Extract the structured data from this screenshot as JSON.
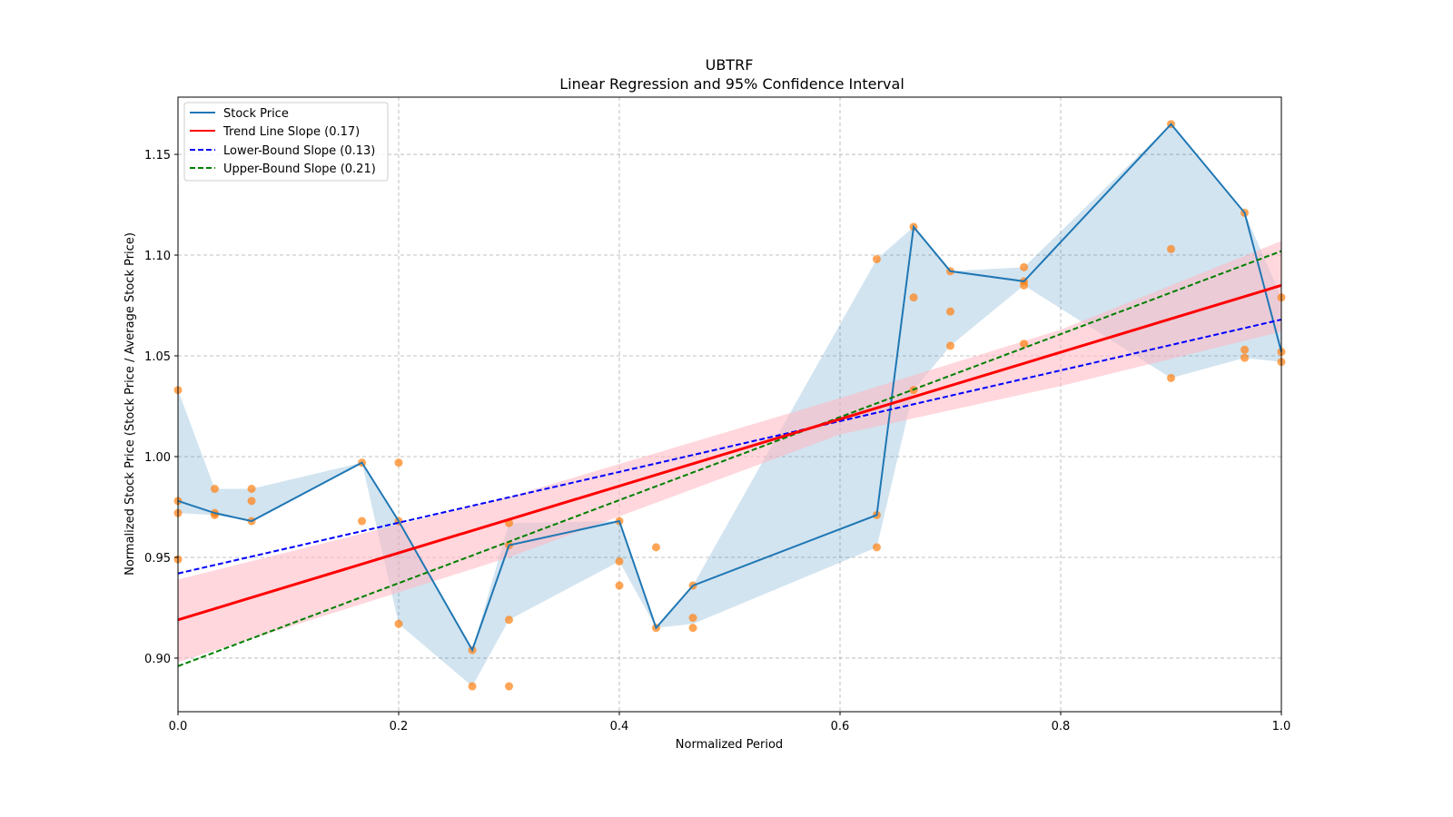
{
  "chart_data": {
    "type": "line",
    "title": "UBTRF",
    "subtitle": "Linear Regression and 95% Confidence Interval",
    "xlabel": "Normalized Period",
    "ylabel": "Normalized Stock Price (Stock Price / Average Stock Price)",
    "xlim": [
      0,
      1
    ],
    "ylim": [
      0.8734,
      1.1784
    ],
    "xticks": [
      "0.0",
      "0.2",
      "0.4",
      "0.6",
      "0.8",
      "1.0"
    ],
    "yticks": [
      "0.90",
      "0.95",
      "1.00",
      "1.05",
      "1.10",
      "1.15"
    ],
    "grid": true,
    "legend_position": "top-left",
    "colors": {
      "stock": "#1f77b4",
      "band": "#1f77b4",
      "scatter": "#ff7f0e",
      "trend": "#ff0000",
      "trend_ci": "#ffb6c1",
      "lower": "#0000ff",
      "upper": "#008000"
    },
    "legend": [
      "Stock Price",
      "Trend Line Slope (0.17)",
      "Lower-Bound Slope (0.13)",
      "Upper-Bound Slope (0.21)"
    ],
    "stock_price": {
      "x": [
        0,
        0.0333,
        0.0667,
        0.1667,
        0.2,
        0.2667,
        0.3,
        0.4,
        0.4333,
        0.4667,
        0.6333,
        0.6667,
        0.7,
        0.7667,
        0.9,
        0.9667,
        1.0
      ],
      "y": [
        0.978,
        0.972,
        0.968,
        0.997,
        0.968,
        0.904,
        0.956,
        0.968,
        0.915,
        0.936,
        0.971,
        1.114,
        1.092,
        1.087,
        1.165,
        1.121,
        1.052
      ],
      "band_lower": [
        0.972,
        0.971,
        0.968,
        0.997,
        0.917,
        0.886,
        0.919,
        0.948,
        0.915,
        0.917,
        0.955,
        1.033,
        1.055,
        1.085,
        1.039,
        1.049,
        1.047
      ],
      "band_upper": [
        1.033,
        0.984,
        0.984,
        0.997,
        0.968,
        0.904,
        0.967,
        0.968,
        0.915,
        0.936,
        1.098,
        1.114,
        1.092,
        1.094,
        1.165,
        1.121,
        1.079
      ]
    },
    "scatter": [
      [
        0,
        1.033
      ],
      [
        0,
        0.978
      ],
      [
        0,
        0.972
      ],
      [
        0,
        0.949
      ],
      [
        0.0333,
        0.984
      ],
      [
        0.0333,
        0.972
      ],
      [
        0.0333,
        0.971
      ],
      [
        0.0667,
        0.984
      ],
      [
        0.0667,
        0.978
      ],
      [
        0.0667,
        0.968
      ],
      [
        0.1667,
        0.997
      ],
      [
        0.1667,
        0.968
      ],
      [
        0.2,
        0.997
      ],
      [
        0.2,
        0.968
      ],
      [
        0.2,
        0.917
      ],
      [
        0.2667,
        0.904
      ],
      [
        0.2667,
        0.886
      ],
      [
        0.3,
        0.967
      ],
      [
        0.3,
        0.956
      ],
      [
        0.3,
        0.919
      ],
      [
        0.3,
        0.886
      ],
      [
        0.4,
        0.968
      ],
      [
        0.4,
        0.948
      ],
      [
        0.4,
        0.936
      ],
      [
        0.4333,
        0.955
      ],
      [
        0.4333,
        0.915
      ],
      [
        0.4667,
        0.936
      ],
      [
        0.4667,
        0.92
      ],
      [
        0.4667,
        0.915
      ],
      [
        0.6333,
        1.098
      ],
      [
        0.6333,
        0.971
      ],
      [
        0.6333,
        0.955
      ],
      [
        0.6667,
        1.114
      ],
      [
        0.6667,
        1.079
      ],
      [
        0.6667,
        1.033
      ],
      [
        0.7,
        1.092
      ],
      [
        0.7,
        1.072
      ],
      [
        0.7,
        1.055
      ],
      [
        0.7667,
        1.094
      ],
      [
        0.7667,
        1.087
      ],
      [
        0.7667,
        1.085
      ],
      [
        0.7667,
        1.056
      ],
      [
        0.9,
        1.165
      ],
      [
        0.9,
        1.103
      ],
      [
        0.9,
        1.039
      ],
      [
        0.9667,
        1.121
      ],
      [
        0.9667,
        1.053
      ],
      [
        0.9667,
        1.049
      ],
      [
        1.0,
        1.079
      ],
      [
        1.0,
        1.052
      ],
      [
        1.0,
        1.047
      ]
    ],
    "trend_line": {
      "x": [
        0,
        1
      ],
      "y": [
        0.919,
        1.085
      ],
      "ci_x": [
        0,
        0.3,
        0.6,
        0.8,
        1
      ],
      "ci_lower": [
        0.898,
        0.95,
        1.011,
        1.035,
        1.062
      ],
      "ci_upper": [
        0.939,
        0.98,
        1.029,
        1.063,
        1.107
      ]
    },
    "lower_bound_line": {
      "x": [
        0,
        1
      ],
      "y": [
        0.942,
        1.068
      ]
    },
    "upper_bound_line": {
      "x": [
        0,
        1
      ],
      "y": [
        0.896,
        1.102
      ]
    }
  }
}
